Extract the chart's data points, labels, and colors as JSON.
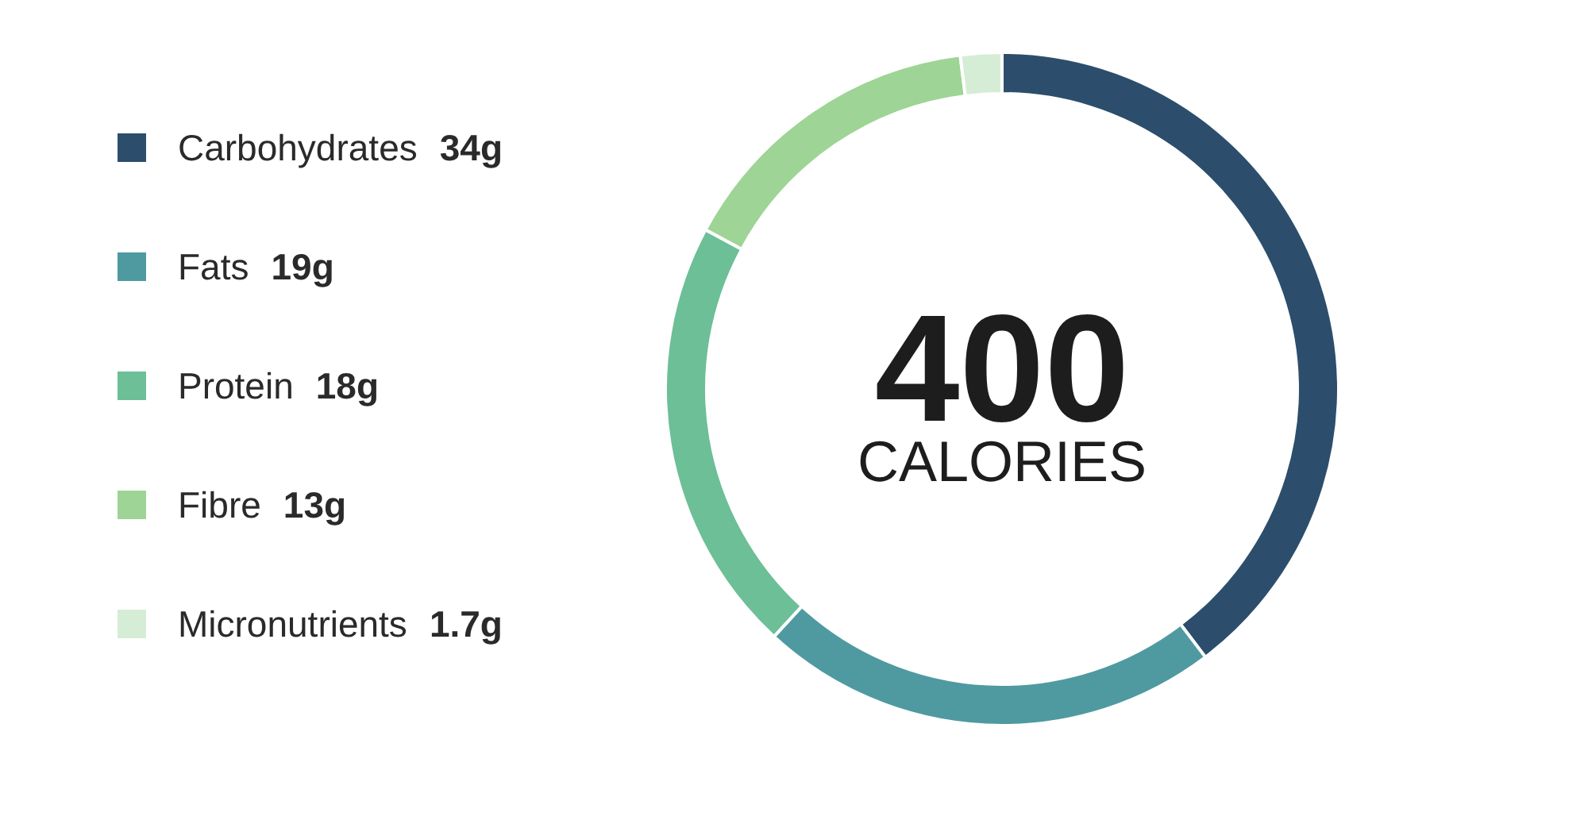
{
  "chart_data": {
    "type": "donut",
    "categories": [
      "Carbohydrates",
      "Fats",
      "Protein",
      "Fibre",
      "Micronutrients"
    ],
    "values": [
      34,
      19,
      18,
      13,
      1.7
    ],
    "colors": [
      "#2c4e6c",
      "#4f9aa0",
      "#6cbf96",
      "#9ed495",
      "#d6edd5"
    ],
    "value_labels": [
      "34g",
      "19g",
      "18g",
      "13g",
      "1.7g"
    ],
    "legend": "left",
    "annotations": [
      "400",
      "CALORIES"
    ]
  }
}
